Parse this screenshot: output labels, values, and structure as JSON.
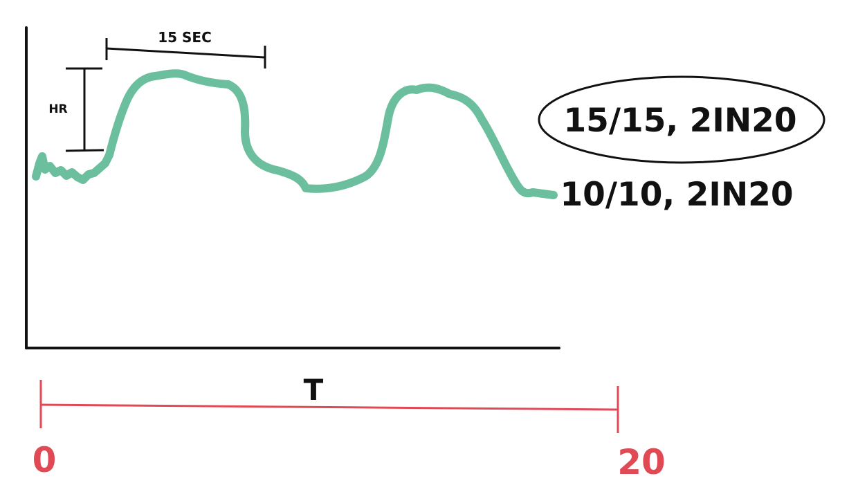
{
  "labels": {
    "hr": "HR",
    "duration": "15 SEC",
    "option_selected": "15/15, 2IN20",
    "option_other": "10/10, 2IN20",
    "time_axis": "T",
    "time_start": "0",
    "time_end": "20"
  },
  "colors": {
    "curve": "#6cbf9e",
    "ink": "#111111",
    "timeline": "#e04a55"
  }
}
